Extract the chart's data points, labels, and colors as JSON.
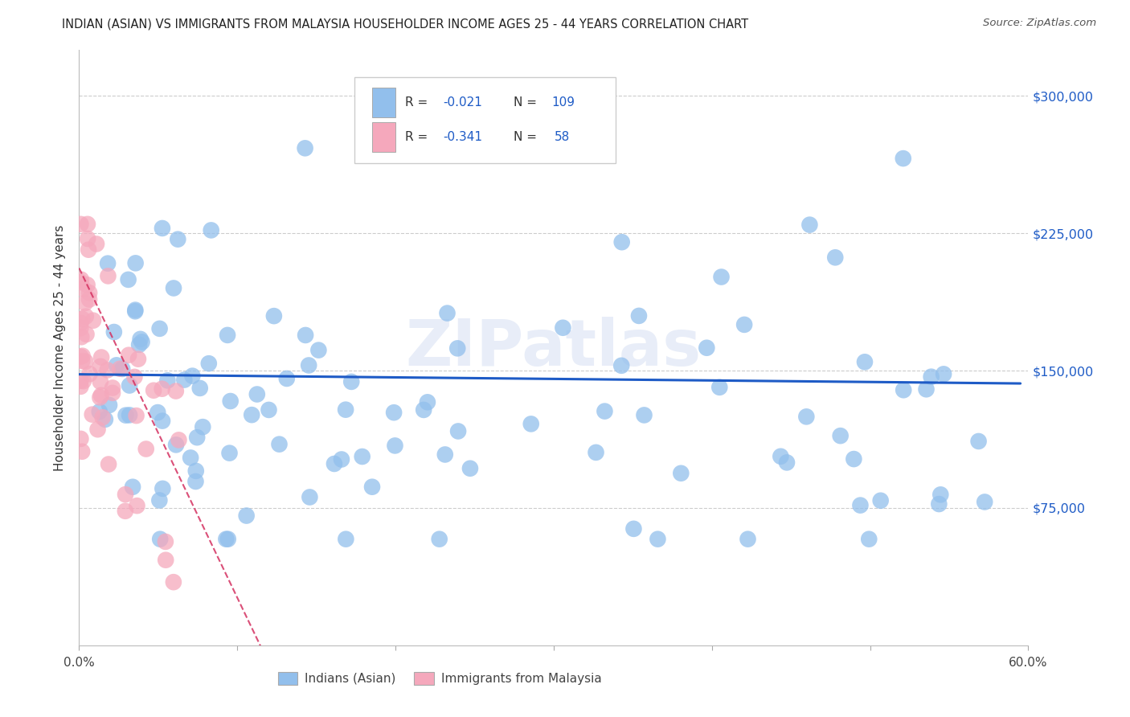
{
  "title": "INDIAN (ASIAN) VS IMMIGRANTS FROM MALAYSIA HOUSEHOLDER INCOME AGES 25 - 44 YEARS CORRELATION CHART",
  "source": "Source: ZipAtlas.com",
  "ylabel": "Householder Income Ages 25 - 44 years",
  "xlim": [
    0.0,
    0.6
  ],
  "ylim": [
    0,
    325000
  ],
  "x_tick_positions": [
    0.0,
    0.1,
    0.2,
    0.3,
    0.4,
    0.5,
    0.6
  ],
  "x_tick_labels": [
    "0.0%",
    "",
    "",
    "",
    "",
    "",
    "60.0%"
  ],
  "y_tick_labels": [
    "$75,000",
    "$150,000",
    "$225,000",
    "$300,000"
  ],
  "y_tick_values": [
    75000,
    150000,
    225000,
    300000
  ],
  "blue_color": "#92bfec",
  "pink_color": "#f5a8bc",
  "line_blue": "#1e5bc6",
  "line_pink": "#d43060",
  "watermark": "ZIPatlas",
  "blue_r": -0.021,
  "blue_n": 109,
  "pink_r": -0.341,
  "pink_n": 58,
  "blue_seed": 42,
  "pink_seed": 99
}
